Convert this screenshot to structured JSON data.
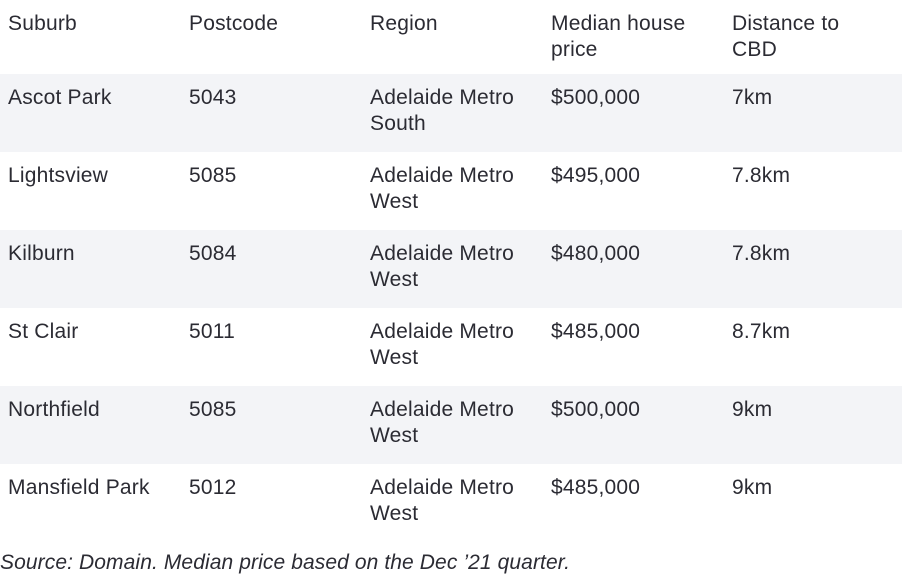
{
  "table": {
    "headers": [
      "Suburb",
      "Postcode",
      "Region",
      "Median house\nprice",
      "Distance to\nCBD"
    ],
    "rows": [
      [
        "Ascot Park",
        "5043",
        "Adelaide Metro\nSouth",
        "$500,000",
        "7km"
      ],
      [
        "Lightsview",
        "5085",
        "Adelaide Metro\nWest",
        "$495,000",
        "7.8km"
      ],
      [
        "Kilburn",
        "5084",
        "Adelaide Metro\nWest",
        "$480,000",
        "7.8km"
      ],
      [
        "St Clair",
        "5011",
        "Adelaide Metro\nWest",
        "$485,000",
        "8.7km"
      ],
      [
        "Northfield",
        "5085",
        "Adelaide Metro\nWest",
        "$500,000",
        "9km"
      ],
      [
        "Mansfield Park",
        "5012",
        "Adelaide Metro\nWest",
        "$485,000",
        "9km"
      ]
    ]
  },
  "source_note": "Source: Domain. Median price based on the Dec ’21 quarter.",
  "colors": {
    "text": "#2b2b33",
    "row_shade": "#f3f4f7",
    "background": "#ffffff"
  }
}
